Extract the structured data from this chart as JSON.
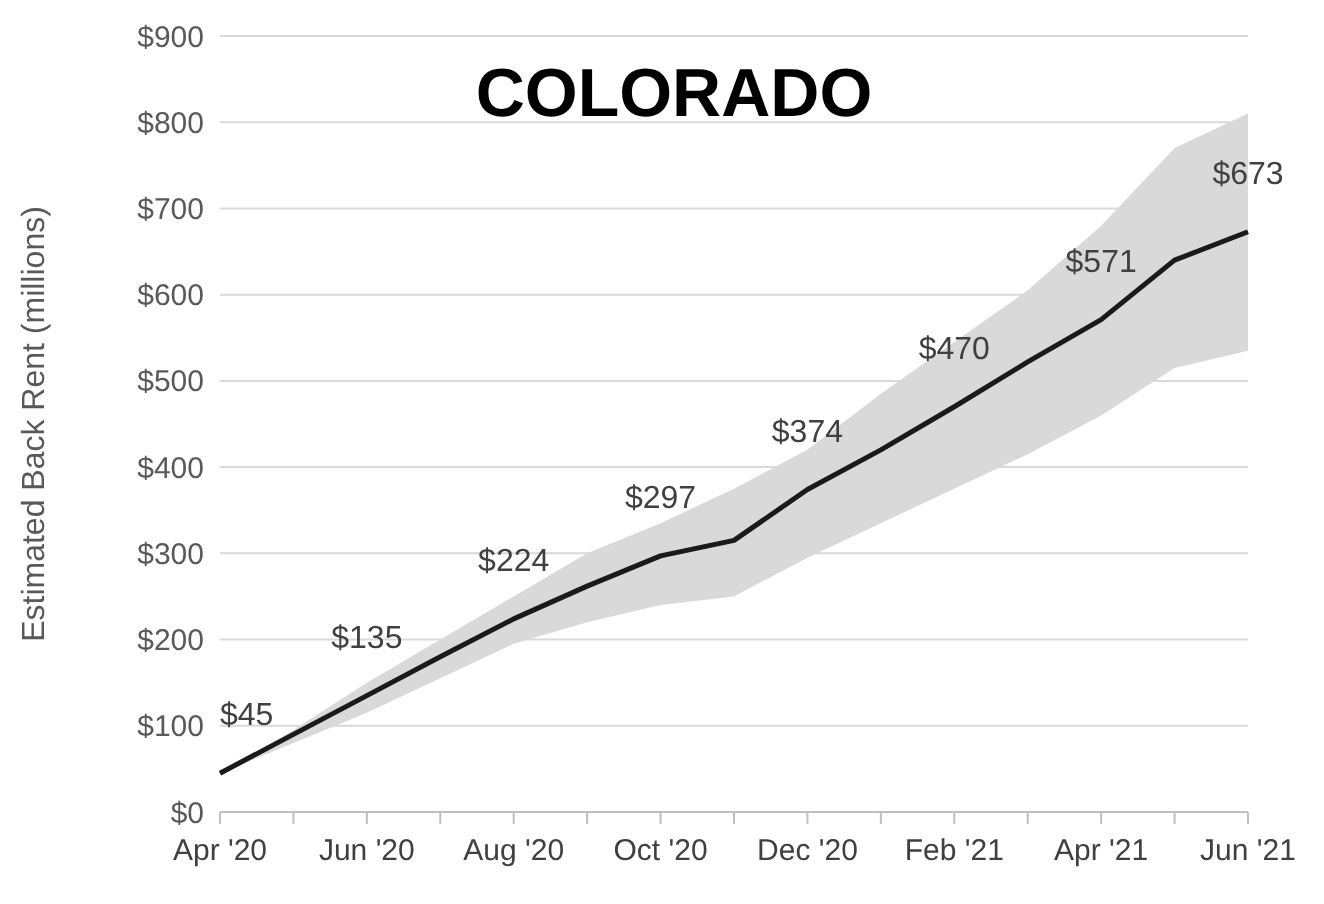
{
  "chart_data": {
    "type": "line",
    "title": "COLORADO",
    "ylabel": "Estimated Back Rent (millions)",
    "categories": [
      "Apr '20",
      null,
      "Jun '20",
      null,
      "Aug '20",
      null,
      "Oct '20",
      null,
      "Dec '20",
      null,
      "Feb '21",
      null,
      "Apr '21",
      null,
      "Jun '21"
    ],
    "series": [
      {
        "color": "#1a1a1a",
        "values": [
          45,
          90,
          135,
          180,
          224,
          262,
          297,
          315,
          374,
          420,
          470,
          522,
          571,
          640,
          673
        ],
        "lower": [
          45,
          80,
          115,
          155,
          195,
          220,
          240,
          250,
          295,
          335,
          375,
          415,
          460,
          515,
          535
        ],
        "upper": [
          45,
          95,
          150,
          200,
          250,
          300,
          335,
          375,
          420,
          485,
          545,
          605,
          680,
          770,
          810
        ],
        "value_labels": [
          "$45",
          null,
          "$135",
          null,
          "$224",
          null,
          "$297",
          null,
          "$374",
          null,
          "$470",
          null,
          "$571",
          null,
          "$673"
        ]
      }
    ],
    "ylim": [
      0,
      900
    ],
    "yticks": [
      {
        "value": 0,
        "label": "$0"
      },
      {
        "value": 100,
        "label": "$100"
      },
      {
        "value": 200,
        "label": "$200"
      },
      {
        "value": 300,
        "label": "$300"
      },
      {
        "value": 400,
        "label": "$400"
      },
      {
        "value": 500,
        "label": "$500"
      },
      {
        "value": 600,
        "label": "$600"
      },
      {
        "value": 700,
        "label": "$700"
      },
      {
        "value": 800,
        "label": "$800"
      },
      {
        "value": 900,
        "label": "$900"
      }
    ],
    "grid": "y",
    "marker": "none",
    "line_style": "solid"
  }
}
